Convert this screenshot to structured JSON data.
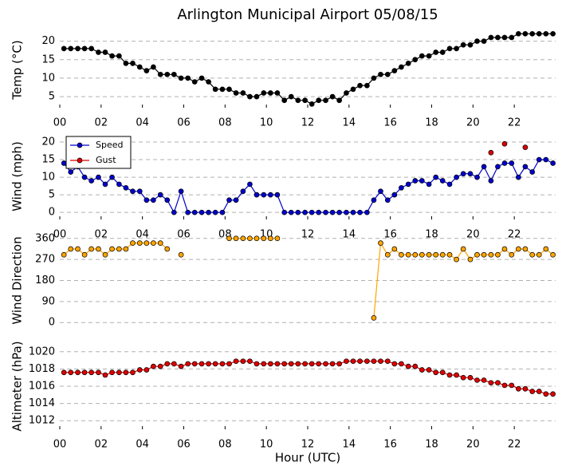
{
  "title": "Arlington Municipal Airport 05/08/15",
  "chart_data": [
    {
      "type": "line",
      "ylabel": "Temp ($^\\circ$C)",
      "xlim": [
        0,
        24
      ],
      "ylim": [
        2,
        22.5
      ],
      "yticks": [
        5,
        10,
        15,
        20
      ],
      "xticks": [
        {
          "value": 0,
          "label": "00"
        },
        {
          "value": 2,
          "label": "02"
        },
        {
          "value": 4,
          "label": "04"
        },
        {
          "value": 6,
          "label": "06"
        },
        {
          "value": 8,
          "label": "08"
        },
        {
          "value": 10,
          "label": "10"
        },
        {
          "value": 12,
          "label": "12"
        },
        {
          "value": 14,
          "label": "14"
        },
        {
          "value": 16,
          "label": "16"
        },
        {
          "value": 18,
          "label": "18"
        },
        {
          "value": 20,
          "label": "20"
        },
        {
          "value": 22,
          "label": "22"
        }
      ],
      "grid": true,
      "x": [
        0.2,
        0.53,
        0.87,
        1.2,
        1.53,
        1.87,
        2.2,
        2.53,
        2.87,
        3.2,
        3.53,
        3.87,
        4.2,
        4.53,
        4.87,
        5.2,
        5.53,
        5.87,
        6.2,
        6.53,
        6.87,
        7.2,
        7.53,
        7.87,
        8.2,
        8.53,
        8.87,
        9.2,
        9.53,
        9.87,
        10.2,
        10.53,
        10.87,
        11.2,
        11.53,
        11.87,
        12.2,
        12.53,
        12.87,
        13.2,
        13.53,
        13.87,
        14.2,
        14.53,
        14.87,
        15.2,
        15.53,
        15.87,
        16.2,
        16.53,
        16.87,
        17.2,
        17.53,
        17.87,
        18.2,
        18.53,
        18.87,
        19.2,
        19.53,
        19.87,
        20.2,
        20.53,
        20.87,
        21.2,
        21.53,
        21.87,
        22.2,
        22.53,
        22.87,
        23.2,
        23.53,
        23.87
      ],
      "series": [
        {
          "name": "Temp",
          "color": "#000000",
          "values": [
            18,
            18,
            18,
            18,
            18,
            17,
            17,
            16,
            16,
            14,
            14,
            13,
            12,
            13,
            11,
            11,
            11,
            10,
            10,
            9,
            10,
            9,
            7,
            7,
            7,
            6,
            6,
            5,
            5,
            6,
            6,
            6,
            4,
            5,
            4,
            4,
            3,
            4,
            4,
            5,
            4,
            6,
            7,
            8,
            8,
            10,
            11,
            11,
            12,
            13,
            14,
            15,
            16,
            16,
            17,
            17,
            18,
            18,
            19,
            19,
            20,
            20,
            21,
            21,
            21,
            21,
            22,
            22,
            22,
            22,
            22,
            22
          ]
        }
      ]
    },
    {
      "type": "line",
      "ylabel": "Wind (mph)",
      "xlim": [
        0,
        24
      ],
      "ylim": [
        -2,
        22.5
      ],
      "yticks": [
        0,
        5,
        10,
        15,
        20
      ],
      "xticks": [
        {
          "value": 0,
          "label": "00"
        },
        {
          "value": 2,
          "label": "02"
        },
        {
          "value": 4,
          "label": "04"
        },
        {
          "value": 6,
          "label": "06"
        },
        {
          "value": 8,
          "label": "08"
        },
        {
          "value": 10,
          "label": "10"
        },
        {
          "value": 12,
          "label": "12"
        },
        {
          "value": 14,
          "label": "14"
        },
        {
          "value": 16,
          "label": "16"
        },
        {
          "value": 18,
          "label": "18"
        },
        {
          "value": 20,
          "label": "20"
        },
        {
          "value": 22,
          "label": "22"
        }
      ],
      "grid": true,
      "legend": "upper left",
      "x": [
        0.2,
        0.53,
        0.87,
        1.2,
        1.53,
        1.87,
        2.2,
        2.53,
        2.87,
        3.2,
        3.53,
        3.87,
        4.2,
        4.53,
        4.87,
        5.2,
        5.53,
        5.87,
        6.2,
        6.53,
        6.87,
        7.2,
        7.53,
        7.87,
        8.2,
        8.53,
        8.87,
        9.2,
        9.53,
        9.87,
        10.2,
        10.53,
        10.87,
        11.2,
        11.53,
        11.87,
        12.2,
        12.53,
        12.87,
        13.2,
        13.53,
        13.87,
        14.2,
        14.53,
        14.87,
        15.2,
        15.53,
        15.87,
        16.2,
        16.53,
        16.87,
        17.2,
        17.53,
        17.87,
        18.2,
        18.53,
        18.87,
        19.2,
        19.53,
        19.87,
        20.2,
        20.53,
        20.87,
        21.2,
        21.53,
        21.87,
        22.2,
        22.53,
        22.87,
        23.2,
        23.53,
        23.87
      ],
      "series": [
        {
          "name": "Speed",
          "color": "#0000cc",
          "values": [
            14,
            11.5,
            13,
            10,
            9,
            10,
            8,
            10,
            8,
            7,
            6,
            6,
            3.5,
            3.5,
            5,
            3.5,
            0,
            6,
            0,
            0,
            0,
            0,
            0,
            0,
            3.5,
            3.5,
            6,
            8,
            5,
            5,
            5,
            5,
            0,
            0,
            0,
            0,
            0,
            0,
            0,
            0,
            0,
            0,
            0,
            0,
            0,
            3.5,
            6,
            3.5,
            5,
            7,
            8,
            9,
            9,
            8,
            10,
            9,
            8,
            10,
            11,
            11,
            10,
            13,
            9,
            13,
            14,
            14,
            10,
            13,
            11.5,
            15,
            15,
            14
          ]
        },
        {
          "name": "Gust",
          "color": "#dd0000",
          "values": [
            null,
            null,
            null,
            null,
            null,
            null,
            null,
            null,
            null,
            null,
            null,
            null,
            null,
            null,
            null,
            null,
            null,
            null,
            null,
            null,
            null,
            null,
            null,
            null,
            null,
            null,
            null,
            null,
            null,
            null,
            null,
            null,
            null,
            null,
            null,
            null,
            null,
            null,
            null,
            null,
            null,
            null,
            null,
            null,
            null,
            null,
            null,
            null,
            null,
            null,
            null,
            null,
            null,
            null,
            null,
            null,
            null,
            null,
            null,
            null,
            null,
            null,
            17,
            null,
            19.5,
            null,
            null,
            18.5,
            null,
            null,
            null,
            null
          ]
        }
      ]
    },
    {
      "type": "line",
      "ylabel": "Wind Direction",
      "xlim": [
        0,
        24
      ],
      "ylim": [
        -30,
        390
      ],
      "yticks": [
        0,
        90,
        180,
        270,
        360
      ],
      "grid": true,
      "x": [
        0.2,
        0.53,
        0.87,
        1.2,
        1.53,
        1.87,
        2.2,
        2.53,
        2.87,
        3.2,
        3.53,
        3.87,
        4.2,
        4.53,
        4.87,
        5.2,
        5.53,
        5.87,
        6.2,
        6.53,
        6.87,
        7.2,
        7.53,
        7.87,
        8.2,
        8.53,
        8.87,
        9.2,
        9.53,
        9.87,
        10.2,
        10.53,
        10.87,
        11.2,
        11.53,
        11.87,
        12.2,
        12.53,
        12.87,
        13.2,
        13.53,
        13.87,
        14.2,
        14.53,
        14.87,
        15.2,
        15.53,
        15.87,
        16.2,
        16.53,
        16.87,
        17.2,
        17.53,
        17.87,
        18.2,
        18.53,
        18.87,
        19.2,
        19.53,
        19.87,
        20.2,
        20.53,
        20.87,
        21.2,
        21.53,
        21.87,
        22.2,
        22.53,
        22.87,
        23.2,
        23.53,
        23.87
      ],
      "series": [
        {
          "name": "Direction",
          "color": "#ffa500",
          "values": [
            290,
            315,
            315,
            290,
            315,
            315,
            290,
            315,
            315,
            315,
            340,
            340,
            340,
            340,
            340,
            315,
            null,
            290,
            null,
            null,
            null,
            null,
            null,
            null,
            360,
            360,
            360,
            360,
            360,
            360,
            360,
            360,
            null,
            null,
            null,
            null,
            null,
            null,
            null,
            null,
            null,
            null,
            null,
            null,
            null,
            20,
            340,
            290,
            315,
            290,
            290,
            290,
            290,
            290,
            290,
            290,
            290,
            270,
            315,
            270,
            290,
            290,
            290,
            290,
            315,
            290,
            315,
            315,
            290,
            290,
            315,
            290
          ]
        }
      ]
    },
    {
      "type": "line",
      "ylabel": "Altimeter (hPa)",
      "xlabel": "Hour (UTC)",
      "xlim": [
        0,
        24
      ],
      "ylim": [
        1011,
        1021
      ],
      "yticks": [
        1012,
        1014,
        1016,
        1018,
        1020
      ],
      "xticks": [
        {
          "value": 0,
          "label": "00"
        },
        {
          "value": 2,
          "label": "02"
        },
        {
          "value": 4,
          "label": "04"
        },
        {
          "value": 6,
          "label": "06"
        },
        {
          "value": 8,
          "label": "08"
        },
        {
          "value": 10,
          "label": "10"
        },
        {
          "value": 12,
          "label": "12"
        },
        {
          "value": 14,
          "label": "14"
        },
        {
          "value": 16,
          "label": "16"
        },
        {
          "value": 18,
          "label": "18"
        },
        {
          "value": 20,
          "label": "20"
        },
        {
          "value": 22,
          "label": "22"
        }
      ],
      "grid": true,
      "x": [
        0.2,
        0.53,
        0.87,
        1.2,
        1.53,
        1.87,
        2.2,
        2.53,
        2.87,
        3.2,
        3.53,
        3.87,
        4.2,
        4.53,
        4.87,
        5.2,
        5.53,
        5.87,
        6.2,
        6.53,
        6.87,
        7.2,
        7.53,
        7.87,
        8.2,
        8.53,
        8.87,
        9.2,
        9.53,
        9.87,
        10.2,
        10.53,
        10.87,
        11.2,
        11.53,
        11.87,
        12.2,
        12.53,
        12.87,
        13.2,
        13.53,
        13.87,
        14.2,
        14.53,
        14.87,
        15.2,
        15.53,
        15.87,
        16.2,
        16.53,
        16.87,
        17.2,
        17.53,
        17.87,
        18.2,
        18.53,
        18.87,
        19.2,
        19.53,
        19.87,
        20.2,
        20.53,
        20.87,
        21.2,
        21.53,
        21.87,
        22.2,
        22.53,
        22.87,
        23.2,
        23.53,
        23.87
      ],
      "series": [
        {
          "name": "Altimeter",
          "color": "#dd0000",
          "values": [
            1017.6,
            1017.6,
            1017.6,
            1017.6,
            1017.6,
            1017.6,
            1017.3,
            1017.6,
            1017.6,
            1017.6,
            1017.6,
            1017.9,
            1017.9,
            1018.3,
            1018.3,
            1018.6,
            1018.6,
            1018.3,
            1018.6,
            1018.6,
            1018.6,
            1018.6,
            1018.6,
            1018.6,
            1018.6,
            1018.9,
            1018.9,
            1018.9,
            1018.6,
            1018.6,
            1018.6,
            1018.6,
            1018.6,
            1018.6,
            1018.6,
            1018.6,
            1018.6,
            1018.6,
            1018.6,
            1018.6,
            1018.6,
            1018.9,
            1018.9,
            1018.9,
            1018.9,
            1018.9,
            1018.9,
            1018.9,
            1018.6,
            1018.6,
            1018.3,
            1018.3,
            1017.9,
            1017.9,
            1017.6,
            1017.6,
            1017.3,
            1017.3,
            1017.0,
            1017.0,
            1016.7,
            1016.7,
            1016.4,
            1016.4,
            1016.1,
            1016.1,
            1015.7,
            1015.7,
            1015.4,
            1015.4,
            1015.1,
            1015.1
          ]
        }
      ]
    }
  ]
}
